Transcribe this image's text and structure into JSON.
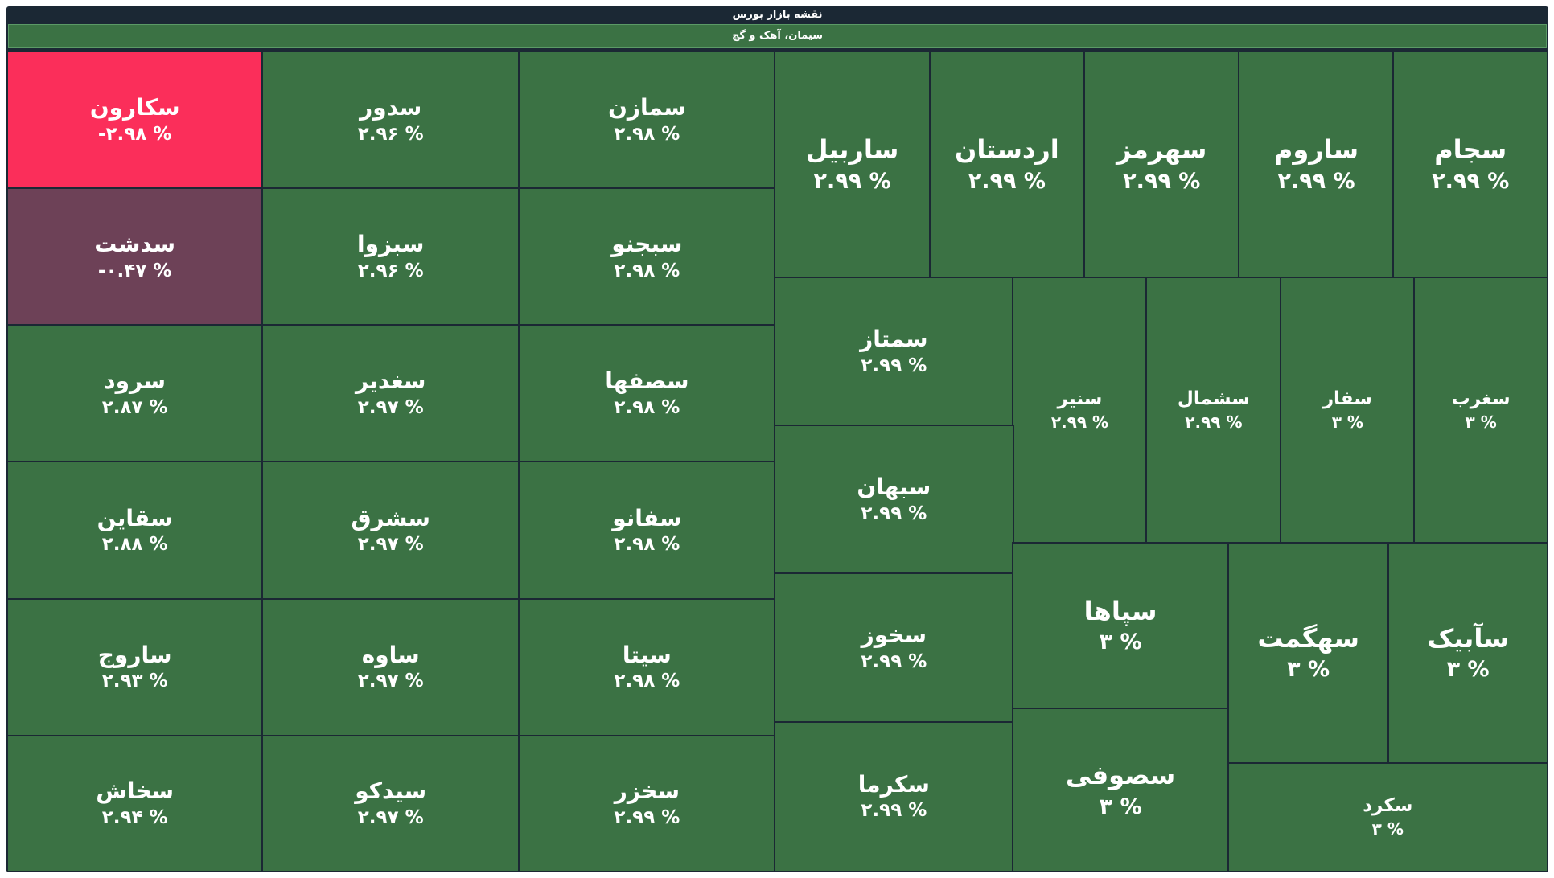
{
  "map": {
    "title": "نقشه بازار بورس",
    "sector": "سیمان، آهک و گچ",
    "colors": {
      "positive": "#3b7244",
      "negative_strong": "#fb2e5a",
      "negative_weak": "#6d4157",
      "background": "#1b2834"
    },
    "tiles": [
      {
        "symbol": "سکارون",
        "change": "-۲.۹۸ %"
      },
      {
        "symbol": "سدور",
        "change": "۲.۹۶ %"
      },
      {
        "symbol": "سمازن",
        "change": "۲.۹۸ %"
      },
      {
        "symbol": "سدشت",
        "change": "-۰.۴۷ %"
      },
      {
        "symbol": "سبزوا",
        "change": "۲.۹۶ %"
      },
      {
        "symbol": "سبجنو",
        "change": "۲.۹۸ %"
      },
      {
        "symbol": "سرود",
        "change": "۲.۸۷ %"
      },
      {
        "symbol": "سغدیر",
        "change": "۲.۹۷ %"
      },
      {
        "symbol": "سصفها",
        "change": "۲.۹۸ %"
      },
      {
        "symbol": "سقاین",
        "change": "۲.۸۸ %"
      },
      {
        "symbol": "سشرق",
        "change": "۲.۹۷ %"
      },
      {
        "symbol": "سفانو",
        "change": "۲.۹۸ %"
      },
      {
        "symbol": "ساروج",
        "change": "۲.۹۳ %"
      },
      {
        "symbol": "ساوه",
        "change": "۲.۹۷ %"
      },
      {
        "symbol": "سیتا",
        "change": "۲.۹۸ %"
      },
      {
        "symbol": "سخاش",
        "change": "۲.۹۴ %"
      },
      {
        "symbol": "سیدکو",
        "change": "۲.۹۷ %"
      },
      {
        "symbol": "سخزر",
        "change": "۲.۹۹ %"
      },
      {
        "symbol": "ساربیل",
        "change": "۲.۹۹ %"
      },
      {
        "symbol": "اردستان",
        "change": "۲.۹۹ %"
      },
      {
        "symbol": "سهرمز",
        "change": "۲.۹۹ %"
      },
      {
        "symbol": "ساروم",
        "change": "۲.۹۹ %"
      },
      {
        "symbol": "سجام",
        "change": "۲.۹۹ %"
      },
      {
        "symbol": "سمتاز",
        "change": "۲.۹۹ %"
      },
      {
        "symbol": "سنیر",
        "change": "۲.۹۹ %"
      },
      {
        "symbol": "سشمال",
        "change": "۲.۹۹ %"
      },
      {
        "symbol": "سفار",
        "change": "۳ %"
      },
      {
        "symbol": "سغرب",
        "change": "۳ %"
      },
      {
        "symbol": "سبهان",
        "change": "۲.۹۹ %"
      },
      {
        "symbol": "سخوز",
        "change": "۲.۹۹ %"
      },
      {
        "symbol": "سکرما",
        "change": "۲.۹۹ %"
      },
      {
        "symbol": "سپاها",
        "change": "۳ %"
      },
      {
        "symbol": "سصوفی",
        "change": "۳ %"
      },
      {
        "symbol": "سهگمت",
        "change": "۳ %"
      },
      {
        "symbol": "سآبیک",
        "change": "۳ %"
      },
      {
        "symbol": "سکرد",
        "change": "۳ %"
      }
    ]
  }
}
